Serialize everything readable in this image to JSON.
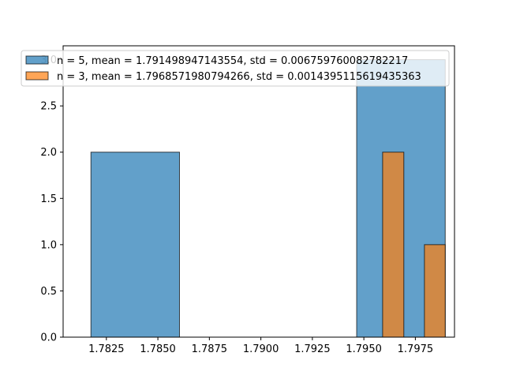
{
  "chart_data": {
    "type": "bar",
    "title": "",
    "xlabel": "",
    "ylabel": "",
    "xlim": [
      1.7804,
      1.7994
    ],
    "ylim": [
      0,
      3.15
    ],
    "x_ticks": [
      1.7825,
      1.785,
      1.7875,
      1.79,
      1.7925,
      1.795,
      1.7975
    ],
    "x_tick_labels": [
      "1.7825",
      "1.7850",
      "1.7875",
      "1.7900",
      "1.7925",
      "1.7950",
      "1.7975"
    ],
    "y_ticks": [
      0.0,
      0.5,
      1.0,
      1.5,
      2.0,
      2.5,
      3.0
    ],
    "y_tick_labels": [
      "0.0",
      "0.5",
      "1.0",
      "1.5",
      "2.0",
      "2.5",
      "3.0"
    ],
    "grid": false,
    "legend_position": "top-left",
    "series": [
      {
        "name": "n = 5, mean = 1.791498947143554, std = 0.006759760082782217",
        "color": "#1f77b4",
        "bins": [
          {
            "x0": 1.78175,
            "x1": 1.78605,
            "count": 2
          },
          {
            "x0": 1.79465,
            "x1": 1.79895,
            "count": 3
          }
        ]
      },
      {
        "name": "n = 3, mean = 1.7968571980794266, std = 0.0014395115619435363",
        "color": "#ff7f0e",
        "bins": [
          {
            "x0": 1.79591,
            "x1": 1.79694,
            "count": 2
          },
          {
            "x0": 1.79794,
            "x1": 1.79895,
            "count": 1
          }
        ]
      }
    ]
  }
}
